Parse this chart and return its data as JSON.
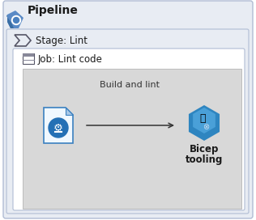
{
  "bg_color": "#ffffff",
  "outer_box_color": "#e8ecf3",
  "outer_box_border": "#b0bcd4",
  "job_box_color": "#ffffff",
  "job_box_border": "#b0bcd4",
  "step_box_color": "#d8d8d8",
  "title_text": "Pipeline",
  "title_fontsize": 10,
  "stage_text": "Stage: Lint",
  "stage_fontsize": 8.5,
  "job_text": "Job: Lint code",
  "job_fontsize": 8.5,
  "step_label": "Build and lint",
  "step_fontsize": 8,
  "bicep_label_line1": "Bicep",
  "bicep_label_line2": "tooling",
  "bicep_fontsize": 8.5,
  "arrow_color": "#333333",
  "blue_dark": "#2470b5",
  "blue_mid": "#4a90c4",
  "blue_light": "#7ab3d9"
}
